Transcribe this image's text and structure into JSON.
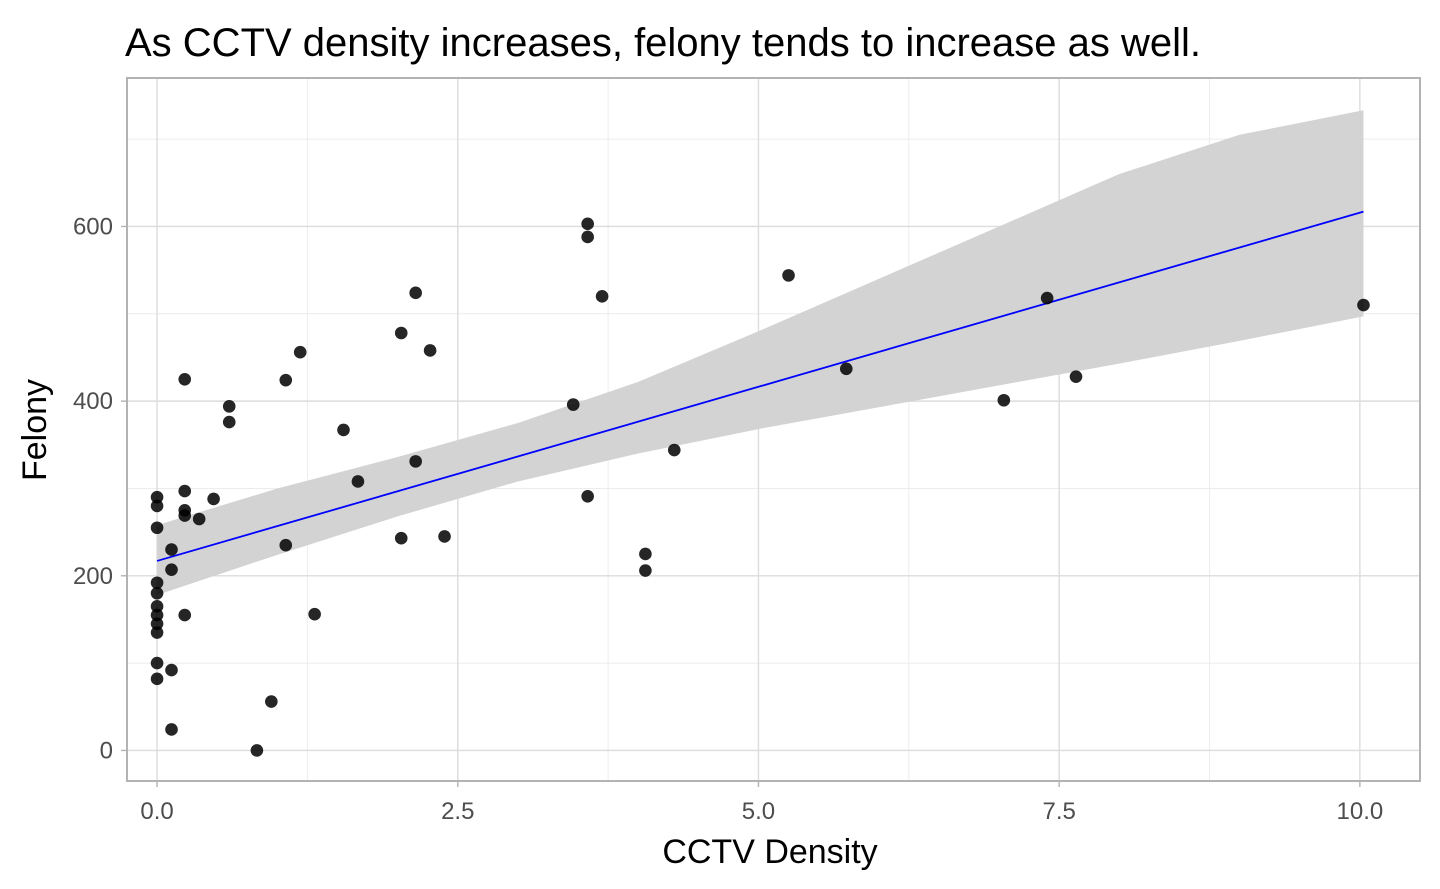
{
  "chart_data": {
    "type": "scatter",
    "title": "As CCTV density increases, felony tends to increase as well.",
    "xlabel": "CCTV Density",
    "ylabel": "Felony",
    "xlim": [
      -0.25,
      10.5
    ],
    "ylim": [
      -35,
      770
    ],
    "x_ticks": [
      0,
      2.5,
      5,
      7.5,
      10
    ],
    "x_tick_labels": [
      "0.0",
      "2.5",
      "5.0",
      "7.5",
      "10.0"
    ],
    "y_ticks": [
      0,
      200,
      400,
      600
    ],
    "y_tick_labels": [
      "0",
      "200",
      "400",
      "600"
    ],
    "grid": true,
    "point_color": "#000000",
    "trend_line": {
      "type": "linear",
      "color": "#0000ff",
      "x": [
        0,
        10.03
      ],
      "y": [
        217,
        617
      ]
    },
    "confidence_band": {
      "color": "#d3d3d3",
      "x": [
        0,
        1,
        2,
        3,
        4,
        5,
        6,
        7,
        8,
        9,
        10.03
      ],
      "lower": [
        178,
        224,
        268,
        308,
        340,
        368,
        393,
        418,
        443,
        469,
        497
      ],
      "upper": [
        258,
        300,
        336,
        375,
        422,
        480,
        540,
        600,
        660,
        705,
        733
      ]
    },
    "points": [
      {
        "x": 0.0,
        "y": 290
      },
      {
        "x": 0.0,
        "y": 280
      },
      {
        "x": 0.0,
        "y": 255
      },
      {
        "x": 0.0,
        "y": 192
      },
      {
        "x": 0.0,
        "y": 180
      },
      {
        "x": 0.0,
        "y": 165
      },
      {
        "x": 0.0,
        "y": 155
      },
      {
        "x": 0.0,
        "y": 145
      },
      {
        "x": 0.0,
        "y": 135
      },
      {
        "x": 0.0,
        "y": 100
      },
      {
        "x": 0.0,
        "y": 82
      },
      {
        "x": 0.12,
        "y": 230
      },
      {
        "x": 0.12,
        "y": 207
      },
      {
        "x": 0.12,
        "y": 92
      },
      {
        "x": 0.12,
        "y": 24
      },
      {
        "x": 0.23,
        "y": 425
      },
      {
        "x": 0.23,
        "y": 297
      },
      {
        "x": 0.23,
        "y": 275
      },
      {
        "x": 0.23,
        "y": 269
      },
      {
        "x": 0.23,
        "y": 155
      },
      {
        "x": 0.35,
        "y": 265
      },
      {
        "x": 0.47,
        "y": 288
      },
      {
        "x": 0.6,
        "y": 394
      },
      {
        "x": 0.6,
        "y": 376
      },
      {
        "x": 0.83,
        "y": 0
      },
      {
        "x": 0.95,
        "y": 56
      },
      {
        "x": 1.07,
        "y": 424
      },
      {
        "x": 1.07,
        "y": 235
      },
      {
        "x": 1.19,
        "y": 456
      },
      {
        "x": 1.31,
        "y": 156
      },
      {
        "x": 1.55,
        "y": 367
      },
      {
        "x": 1.67,
        "y": 308
      },
      {
        "x": 2.03,
        "y": 478
      },
      {
        "x": 2.03,
        "y": 243
      },
      {
        "x": 2.15,
        "y": 524
      },
      {
        "x": 2.15,
        "y": 331
      },
      {
        "x": 2.27,
        "y": 458
      },
      {
        "x": 2.39,
        "y": 245
      },
      {
        "x": 3.46,
        "y": 396
      },
      {
        "x": 3.58,
        "y": 603
      },
      {
        "x": 3.58,
        "y": 588
      },
      {
        "x": 3.58,
        "y": 291
      },
      {
        "x": 3.7,
        "y": 520
      },
      {
        "x": 4.06,
        "y": 225
      },
      {
        "x": 4.06,
        "y": 206
      },
      {
        "x": 4.3,
        "y": 344
      },
      {
        "x": 5.25,
        "y": 544
      },
      {
        "x": 5.73,
        "y": 437
      },
      {
        "x": 7.04,
        "y": 401
      },
      {
        "x": 7.4,
        "y": 518
      },
      {
        "x": 7.64,
        "y": 428
      },
      {
        "x": 10.03,
        "y": 510
      }
    ]
  }
}
